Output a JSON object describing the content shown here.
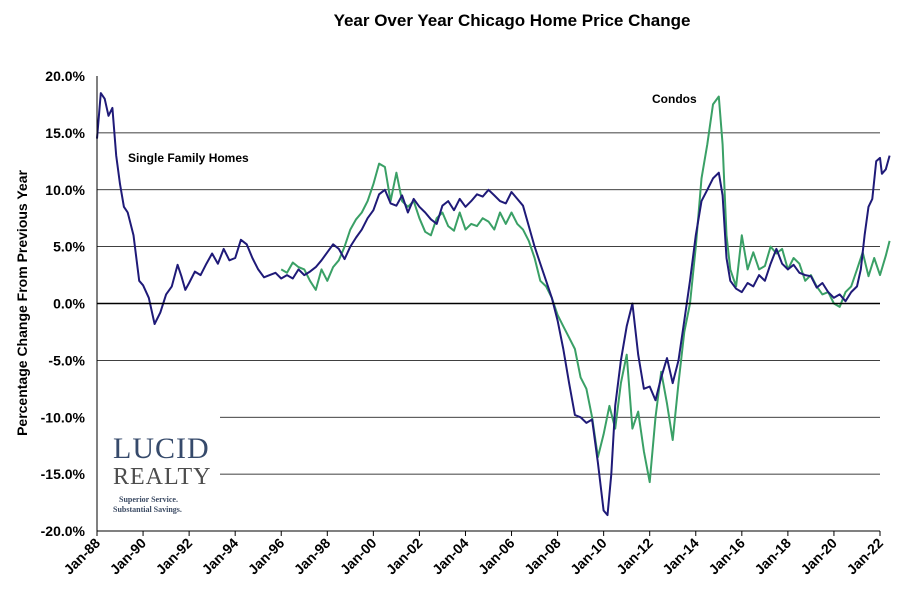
{
  "chart_data": {
    "type": "line",
    "title": "Year Over Year Chicago Home Price Change",
    "xlabel": "",
    "ylabel": "Percentage Change From Previous Year",
    "ylim": [
      -20,
      20
    ],
    "xlim": [
      "1988-01",
      "2022-01"
    ],
    "y_ticks": [
      "20.0%",
      "15.0%",
      "10.0%",
      "5.0%",
      "0.0%",
      "-5.0%",
      "-10.0%",
      "-15.0%",
      "-20.0%"
    ],
    "x_ticks": [
      "Jan-88",
      "Jan-90",
      "Jan-92",
      "Jan-94",
      "Jan-96",
      "Jan-98",
      "Jan-00",
      "Jan-02",
      "Jan-04",
      "Jan-06",
      "Jan-08",
      "Jan-10",
      "Jan-12",
      "Jan-14",
      "Jan-16",
      "Jan-18",
      "Jan-20",
      "Jan-22"
    ],
    "grid": "horizontal",
    "annotations": [
      {
        "text": "Single Family Homes",
        "series": "Single Family Homes"
      },
      {
        "text": "Condos",
        "series": "Condos"
      }
    ],
    "series": [
      {
        "name": "Single Family Homes",
        "color": "#1f1a78",
        "points": [
          [
            "1988-01",
            14.5
          ],
          [
            "1988-03",
            18.5
          ],
          [
            "1988-05",
            18.0
          ],
          [
            "1988-07",
            16.5
          ],
          [
            "1988-09",
            17.2
          ],
          [
            "1988-11",
            13.0
          ],
          [
            "1989-01",
            10.5
          ],
          [
            "1989-03",
            8.5
          ],
          [
            "1989-05",
            8.0
          ],
          [
            "1989-08",
            6.0
          ],
          [
            "1989-11",
            2.0
          ],
          [
            "1990-01",
            1.6
          ],
          [
            "1990-04",
            0.5
          ],
          [
            "1990-07",
            -1.8
          ],
          [
            "1990-10",
            -0.8
          ],
          [
            "1991-01",
            0.8
          ],
          [
            "1991-04",
            1.5
          ],
          [
            "1991-07",
            3.4
          ],
          [
            "1991-09",
            2.4
          ],
          [
            "1991-11",
            1.2
          ],
          [
            "1992-01",
            1.8
          ],
          [
            "1992-04",
            2.8
          ],
          [
            "1992-07",
            2.5
          ],
          [
            "1992-10",
            3.5
          ],
          [
            "1993-01",
            4.4
          ],
          [
            "1993-04",
            3.5
          ],
          [
            "1993-07",
            4.8
          ],
          [
            "1993-10",
            3.8
          ],
          [
            "1994-01",
            4.0
          ],
          [
            "1994-04",
            5.6
          ],
          [
            "1994-07",
            5.2
          ],
          [
            "1994-10",
            4.0
          ],
          [
            "1995-01",
            3.0
          ],
          [
            "1995-04",
            2.3
          ],
          [
            "1995-07",
            2.5
          ],
          [
            "1995-10",
            2.7
          ],
          [
            "1996-01",
            2.2
          ],
          [
            "1996-04",
            2.5
          ],
          [
            "1996-07",
            2.2
          ],
          [
            "1996-10",
            3.0
          ],
          [
            "1997-01",
            2.5
          ],
          [
            "1997-04",
            2.8
          ],
          [
            "1997-07",
            3.2
          ],
          [
            "1997-10",
            3.8
          ],
          [
            "1998-01",
            4.5
          ],
          [
            "1998-04",
            5.2
          ],
          [
            "1998-07",
            4.8
          ],
          [
            "1998-10",
            3.9
          ],
          [
            "1999-01",
            5.0
          ],
          [
            "1999-04",
            5.8
          ],
          [
            "1999-07",
            6.5
          ],
          [
            "1999-10",
            7.5
          ],
          [
            "2000-01",
            8.2
          ],
          [
            "2000-04",
            9.6
          ],
          [
            "2000-07",
            10.0
          ],
          [
            "2000-10",
            8.8
          ],
          [
            "2001-01",
            8.6
          ],
          [
            "2001-04",
            9.5
          ],
          [
            "2001-07",
            8.0
          ],
          [
            "2001-10",
            9.2
          ],
          [
            "2002-01",
            8.5
          ],
          [
            "2002-04",
            8.0
          ],
          [
            "2002-07",
            7.4
          ],
          [
            "2002-10",
            7.0
          ],
          [
            "2003-01",
            8.6
          ],
          [
            "2003-04",
            9.0
          ],
          [
            "2003-07",
            8.2
          ],
          [
            "2003-10",
            9.2
          ],
          [
            "2004-01",
            8.5
          ],
          [
            "2004-04",
            9.0
          ],
          [
            "2004-07",
            9.6
          ],
          [
            "2004-10",
            9.4
          ],
          [
            "2005-01",
            10.0
          ],
          [
            "2005-04",
            9.5
          ],
          [
            "2005-07",
            9.0
          ],
          [
            "2005-10",
            8.8
          ],
          [
            "2006-01",
            9.8
          ],
          [
            "2006-04",
            9.2
          ],
          [
            "2006-07",
            8.6
          ],
          [
            "2006-10",
            6.8
          ],
          [
            "2007-01",
            5.0
          ],
          [
            "2007-04",
            3.5
          ],
          [
            "2007-07",
            2.0
          ],
          [
            "2007-10",
            0.5
          ],
          [
            "2008-01",
            -1.5
          ],
          [
            "2008-04",
            -4.0
          ],
          [
            "2008-07",
            -7.0
          ],
          [
            "2008-10",
            -9.8
          ],
          [
            "2009-01",
            -10.0
          ],
          [
            "2009-04",
            -10.5
          ],
          [
            "2009-07",
            -10.2
          ],
          [
            "2009-10",
            -14.0
          ],
          [
            "2010-01",
            -18.2
          ],
          [
            "2010-03",
            -18.6
          ],
          [
            "2010-05",
            -15.0
          ],
          [
            "2010-07",
            -9.0
          ],
          [
            "2010-10",
            -5.0
          ],
          [
            "2011-01",
            -2.0
          ],
          [
            "2011-04",
            0.0
          ],
          [
            "2011-07",
            -4.5
          ],
          [
            "2011-10",
            -7.5
          ],
          [
            "2012-01",
            -7.3
          ],
          [
            "2012-04",
            -8.5
          ],
          [
            "2012-07",
            -6.5
          ],
          [
            "2012-10",
            -4.8
          ],
          [
            "2013-01",
            -7.0
          ],
          [
            "2013-04",
            -5.0
          ],
          [
            "2013-07",
            -1.5
          ],
          [
            "2013-10",
            2.0
          ],
          [
            "2014-01",
            6.0
          ],
          [
            "2014-04",
            9.0
          ],
          [
            "2014-07",
            10.0
          ],
          [
            "2014-10",
            11.0
          ],
          [
            "2015-01",
            11.5
          ],
          [
            "2015-03",
            9.5
          ],
          [
            "2015-05",
            4.0
          ],
          [
            "2015-07",
            2.0
          ],
          [
            "2015-10",
            1.3
          ],
          [
            "2016-01",
            1.0
          ],
          [
            "2016-04",
            1.8
          ],
          [
            "2016-07",
            1.5
          ],
          [
            "2016-10",
            2.5
          ],
          [
            "2017-01",
            2.0
          ],
          [
            "2017-04",
            3.5
          ],
          [
            "2017-07",
            4.8
          ],
          [
            "2017-10",
            3.5
          ],
          [
            "2018-01",
            3.0
          ],
          [
            "2018-04",
            3.4
          ],
          [
            "2018-07",
            2.7
          ],
          [
            "2018-10",
            2.5
          ],
          [
            "2019-01",
            2.4
          ],
          [
            "2019-04",
            1.4
          ],
          [
            "2019-07",
            1.8
          ],
          [
            "2019-10",
            1.0
          ],
          [
            "2020-01",
            0.5
          ],
          [
            "2020-04",
            0.8
          ],
          [
            "2020-07",
            0.2
          ],
          [
            "2020-10",
            1.0
          ],
          [
            "2021-01",
            1.5
          ],
          [
            "2021-03",
            3.0
          ],
          [
            "2021-05",
            6.0
          ],
          [
            "2021-07",
            8.5
          ],
          [
            "2021-09",
            9.2
          ],
          [
            "2021-11",
            12.5
          ],
          [
            "2022-01",
            12.8
          ],
          [
            "2022-02",
            11.4
          ],
          [
            "2022-04",
            11.8
          ],
          [
            "2022-06",
            13.0
          ]
        ]
      },
      {
        "name": "Condos",
        "color": "#3aa066",
        "points": [
          [
            "1996-01",
            3.0
          ],
          [
            "1996-04",
            2.7
          ],
          [
            "1996-07",
            3.6
          ],
          [
            "1996-10",
            3.2
          ],
          [
            "1997-01",
            3.0
          ],
          [
            "1997-04",
            2.0
          ],
          [
            "1997-07",
            1.2
          ],
          [
            "1997-10",
            3.0
          ],
          [
            "1998-01",
            2.0
          ],
          [
            "1998-04",
            3.2
          ],
          [
            "1998-07",
            3.8
          ],
          [
            "1998-10",
            5.0
          ],
          [
            "1999-01",
            6.5
          ],
          [
            "1999-04",
            7.4
          ],
          [
            "1999-07",
            8.0
          ],
          [
            "1999-10",
            9.0
          ],
          [
            "2000-01",
            10.5
          ],
          [
            "2000-04",
            12.3
          ],
          [
            "2000-07",
            12.0
          ],
          [
            "2000-10",
            9.0
          ],
          [
            "2001-01",
            11.5
          ],
          [
            "2001-04",
            9.0
          ],
          [
            "2001-07",
            8.5
          ],
          [
            "2001-10",
            9.0
          ],
          [
            "2002-01",
            7.5
          ],
          [
            "2002-04",
            6.3
          ],
          [
            "2002-07",
            6.0
          ],
          [
            "2002-10",
            7.5
          ],
          [
            "2003-01",
            8.0
          ],
          [
            "2003-04",
            6.8
          ],
          [
            "2003-07",
            6.4
          ],
          [
            "2003-10",
            8.0
          ],
          [
            "2004-01",
            6.5
          ],
          [
            "2004-04",
            7.0
          ],
          [
            "2004-07",
            6.8
          ],
          [
            "2004-10",
            7.5
          ],
          [
            "2005-01",
            7.2
          ],
          [
            "2005-04",
            6.5
          ],
          [
            "2005-07",
            8.0
          ],
          [
            "2005-10",
            7.0
          ],
          [
            "2006-01",
            8.0
          ],
          [
            "2006-04",
            7.0
          ],
          [
            "2006-07",
            6.5
          ],
          [
            "2006-10",
            5.5
          ],
          [
            "2007-01",
            4.0
          ],
          [
            "2007-04",
            2.0
          ],
          [
            "2007-07",
            1.5
          ],
          [
            "2007-10",
            0.5
          ],
          [
            "2008-01",
            -1.0
          ],
          [
            "2008-04",
            -2.0
          ],
          [
            "2008-07",
            -3.0
          ],
          [
            "2008-10",
            -4.0
          ],
          [
            "2009-01",
            -6.5
          ],
          [
            "2009-04",
            -7.5
          ],
          [
            "2009-07",
            -10.0
          ],
          [
            "2009-10",
            -13.5
          ],
          [
            "2010-01",
            -11.5
          ],
          [
            "2010-04",
            -9.0
          ],
          [
            "2010-07",
            -11.0
          ],
          [
            "2010-10",
            -7.0
          ],
          [
            "2011-01",
            -4.5
          ],
          [
            "2011-04",
            -11.0
          ],
          [
            "2011-07",
            -9.5
          ],
          [
            "2011-10",
            -13.0
          ],
          [
            "2012-01",
            -15.7
          ],
          [
            "2012-04",
            -10.0
          ],
          [
            "2012-07",
            -6.0
          ],
          [
            "2012-10",
            -8.8
          ],
          [
            "2013-01",
            -12.0
          ],
          [
            "2013-04",
            -7.0
          ],
          [
            "2013-07",
            -2.5
          ],
          [
            "2013-10",
            0.0
          ],
          [
            "2014-01",
            5.0
          ],
          [
            "2014-04",
            11.0
          ],
          [
            "2014-07",
            14.0
          ],
          [
            "2014-10",
            17.5
          ],
          [
            "2015-01",
            18.2
          ],
          [
            "2015-03",
            14.0
          ],
          [
            "2015-05",
            6.0
          ],
          [
            "2015-07",
            3.0
          ],
          [
            "2015-10",
            1.5
          ],
          [
            "2016-01",
            6.0
          ],
          [
            "2016-04",
            3.0
          ],
          [
            "2016-07",
            4.5
          ],
          [
            "2016-10",
            3.0
          ],
          [
            "2017-01",
            3.3
          ],
          [
            "2017-04",
            5.0
          ],
          [
            "2017-07",
            4.4
          ],
          [
            "2017-10",
            4.8
          ],
          [
            "2018-01",
            3.0
          ],
          [
            "2018-04",
            4.0
          ],
          [
            "2018-07",
            3.5
          ],
          [
            "2018-10",
            2.0
          ],
          [
            "2019-01",
            2.5
          ],
          [
            "2019-04",
            1.5
          ],
          [
            "2019-07",
            0.8
          ],
          [
            "2019-10",
            1.0
          ],
          [
            "2020-01",
            0.0
          ],
          [
            "2020-04",
            -0.3
          ],
          [
            "2020-07",
            1.0
          ],
          [
            "2020-10",
            1.5
          ],
          [
            "2021-01",
            3.0
          ],
          [
            "2021-04",
            4.5
          ],
          [
            "2021-07",
            2.4
          ],
          [
            "2021-10",
            4.0
          ],
          [
            "2022-01",
            2.5
          ],
          [
            "2022-04",
            4.2
          ],
          [
            "2022-06",
            5.5
          ]
        ]
      }
    ]
  },
  "logo": {
    "line1": "LUCID",
    "line2": "REALTY",
    "tagline1": "Superior Service.",
    "tagline2": "Substantial Savings."
  }
}
